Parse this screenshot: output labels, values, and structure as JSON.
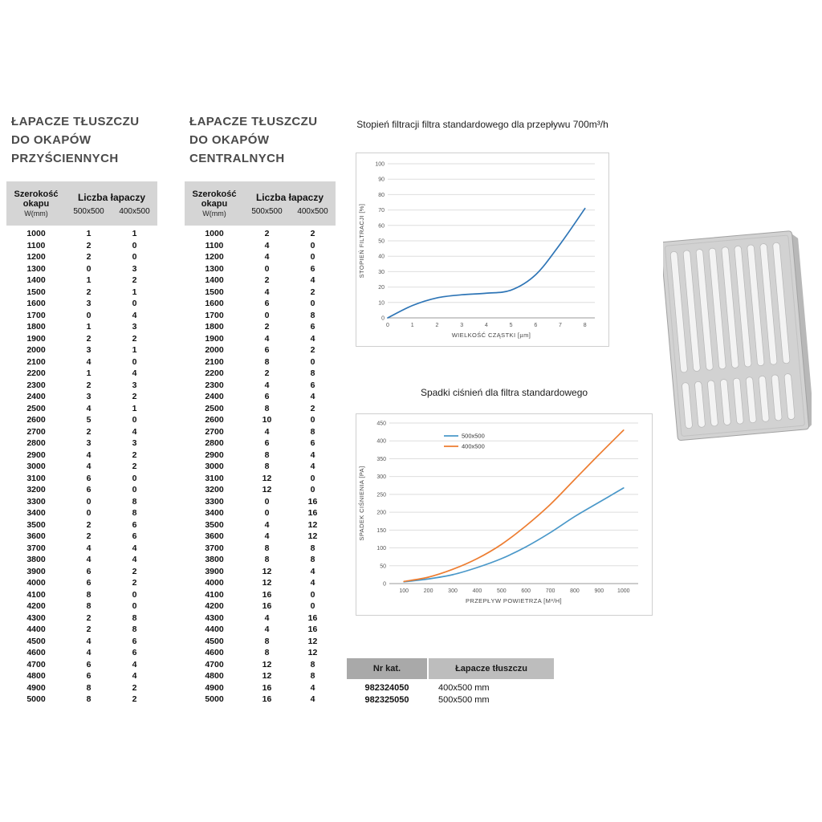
{
  "wall_table": {
    "title": "ŁAPACZE TŁUSZCZU\nDO OKAPÓW\nPRZYŚCIENNYCH",
    "header": {
      "col1": "Szerokość\nokapu",
      "col1_sub": "W(mm)",
      "group": "Liczba łapaczy",
      "sub1": "500x500",
      "sub2": "400x500"
    },
    "rows": [
      [
        1000,
        1,
        1
      ],
      [
        1100,
        2,
        0
      ],
      [
        1200,
        2,
        0
      ],
      [
        1300,
        0,
        3
      ],
      [
        1400,
        1,
        2
      ],
      [
        1500,
        2,
        1
      ],
      [
        1600,
        3,
        0
      ],
      [
        1700,
        0,
        4
      ],
      [
        1800,
        1,
        3
      ],
      [
        1900,
        2,
        2
      ],
      [
        2000,
        3,
        1
      ],
      [
        2100,
        4,
        0
      ],
      [
        2200,
        1,
        4
      ],
      [
        2300,
        2,
        3
      ],
      [
        2400,
        3,
        2
      ],
      [
        2500,
        4,
        1
      ],
      [
        2600,
        5,
        0
      ],
      [
        2700,
        2,
        4
      ],
      [
        2800,
        3,
        3
      ],
      [
        2900,
        4,
        2
      ],
      [
        3000,
        4,
        2
      ],
      [
        3100,
        6,
        0
      ],
      [
        3200,
        6,
        0
      ],
      [
        3300,
        0,
        8
      ],
      [
        3400,
        0,
        8
      ],
      [
        3500,
        2,
        6
      ],
      [
        3600,
        2,
        6
      ],
      [
        3700,
        4,
        4
      ],
      [
        3800,
        4,
        4
      ],
      [
        3900,
        6,
        2
      ],
      [
        4000,
        6,
        2
      ],
      [
        4100,
        8,
        0
      ],
      [
        4200,
        8,
        0
      ],
      [
        4300,
        2,
        8
      ],
      [
        4400,
        2,
        8
      ],
      [
        4500,
        4,
        6
      ],
      [
        4600,
        4,
        6
      ],
      [
        4700,
        6,
        4
      ],
      [
        4800,
        6,
        4
      ],
      [
        4900,
        8,
        2
      ],
      [
        5000,
        8,
        2
      ]
    ]
  },
  "central_table": {
    "title": "ŁAPACZE TŁUSZCZU\nDO OKAPÓW\nCENTRALNYCH",
    "header": {
      "col1": "Szerokość\nokapu",
      "col1_sub": "W(mm)",
      "group": "Liczba łapaczy",
      "sub1": "500x500",
      "sub2": "400x500"
    },
    "rows": [
      [
        1000,
        2,
        2
      ],
      [
        1100,
        4,
        0
      ],
      [
        1200,
        4,
        0
      ],
      [
        1300,
        0,
        6
      ],
      [
        1400,
        2,
        4
      ],
      [
        1500,
        4,
        2
      ],
      [
        1600,
        6,
        0
      ],
      [
        1700,
        0,
        8
      ],
      [
        1800,
        2,
        6
      ],
      [
        1900,
        4,
        4
      ],
      [
        2000,
        6,
        2
      ],
      [
        2100,
        8,
        0
      ],
      [
        2200,
        2,
        8
      ],
      [
        2300,
        4,
        6
      ],
      [
        2400,
        6,
        4
      ],
      [
        2500,
        8,
        2
      ],
      [
        2600,
        10,
        0
      ],
      [
        2700,
        4,
        8
      ],
      [
        2800,
        6,
        6
      ],
      [
        2900,
        8,
        4
      ],
      [
        3000,
        8,
        4
      ],
      [
        3100,
        12,
        0
      ],
      [
        3200,
        12,
        0
      ],
      [
        3300,
        0,
        16
      ],
      [
        3400,
        0,
        16
      ],
      [
        3500,
        4,
        12
      ],
      [
        3600,
        4,
        12
      ],
      [
        3700,
        8,
        8
      ],
      [
        3800,
        8,
        8
      ],
      [
        3900,
        12,
        4
      ],
      [
        4000,
        12,
        4
      ],
      [
        4100,
        16,
        0
      ],
      [
        4200,
        16,
        0
      ],
      [
        4300,
        4,
        16
      ],
      [
        4400,
        4,
        16
      ],
      [
        4500,
        8,
        12
      ],
      [
        4600,
        8,
        12
      ],
      [
        4700,
        12,
        8
      ],
      [
        4800,
        12,
        8
      ],
      [
        4900,
        16,
        4
      ],
      [
        5000,
        16,
        4
      ]
    ]
  },
  "catalog_table": {
    "col1_header": "Nr kat.",
    "col2_header": "Łapacze tłuszczu",
    "rows": [
      [
        "982324050",
        "400x500 mm"
      ],
      [
        "982325050",
        "500x500 mm"
      ]
    ]
  },
  "chart_data": [
    {
      "type": "line",
      "title": "Stopień filtracji filtra standardowego dla przepływu 700m³/h",
      "xlabel": "WIELKOŚĆ CZĄSTKI [µm]",
      "ylabel": "STOPIEŃ FILTRACJI [%]",
      "x": [
        0,
        1,
        2,
        3,
        4,
        5,
        6,
        7,
        8
      ],
      "series": [
        {
          "name": "stopień filtracji",
          "color": "#2e75b6",
          "values": [
            0,
            8,
            13,
            15,
            16,
            18,
            28,
            48,
            71
          ]
        }
      ],
      "xlim": [
        0,
        8.4
      ],
      "ylim": [
        0,
        100
      ],
      "xticks": [
        0,
        1,
        2,
        3,
        4,
        5,
        6,
        7,
        8
      ],
      "yticks": [
        0,
        10,
        20,
        30,
        40,
        50,
        60,
        70,
        80,
        90,
        100
      ],
      "grid": "horizontal",
      "legend": "none"
    },
    {
      "type": "line",
      "title": "Spadki ciśnień dla filtra standardowego",
      "xlabel": "PRZEPŁYW POWIETRZA [M³/H]",
      "ylabel": "SPADEK CIŚNIENIA [PA]",
      "x": [
        100,
        200,
        300,
        400,
        500,
        600,
        700,
        800,
        900,
        1000
      ],
      "series": [
        {
          "name": "500x500",
          "color": "#4a98c9",
          "values": [
            5,
            13,
            25,
            45,
            70,
            103,
            143,
            188,
            228,
            268
          ]
        },
        {
          "name": "400x500",
          "color": "#ed7d31",
          "values": [
            6,
            18,
            40,
            70,
            110,
            162,
            222,
            292,
            362,
            430
          ]
        }
      ],
      "xlim": [
        40,
        1060
      ],
      "ylim": [
        0,
        450
      ],
      "xticks": [
        100,
        200,
        300,
        400,
        500,
        600,
        700,
        800,
        900,
        1000
      ],
      "yticks": [
        0,
        50,
        100,
        150,
        200,
        250,
        300,
        350,
        400,
        450
      ],
      "grid": "horizontal",
      "legend": "top"
    }
  ],
  "colors": {
    "header_gray": "#d5d5d5",
    "chart1_line": "#2e75b6",
    "chart2_blue": "#4a98c9",
    "chart2_orange": "#ed7d31"
  }
}
